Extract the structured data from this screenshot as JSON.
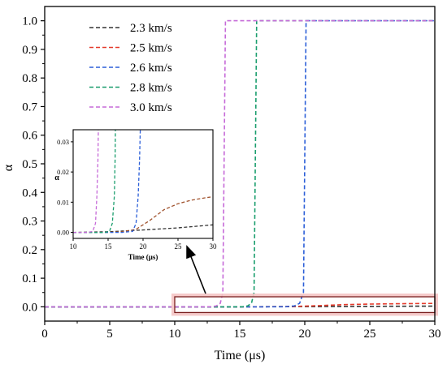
{
  "chart_data": [
    {
      "type": "line",
      "title": "",
      "xlabel": "Time (μs)",
      "ylabel": "α",
      "xlim": [
        0,
        30
      ],
      "ylim": [
        -0.05,
        1.05
      ],
      "x_ticks": [
        0,
        5,
        10,
        15,
        20,
        25,
        30
      ],
      "y_ticks": [
        0.0,
        0.1,
        0.2,
        0.3,
        0.4,
        0.5,
        0.6,
        0.7,
        0.8,
        0.9,
        1.0
      ],
      "x_tick_labels": [
        "0",
        "5",
        "10",
        "15",
        "20",
        "25",
        "30"
      ],
      "y_tick_labels": [
        "0.0",
        "0.1",
        "0.2",
        "0.3",
        "0.4",
        "0.5",
        "0.6",
        "0.7",
        "0.8",
        "0.9",
        "1.0"
      ],
      "grid": false,
      "legend_position": "top-left",
      "line_style": "dashed",
      "series": [
        {
          "name": "2.3 km/s",
          "color": "#333333",
          "x": [
            0,
            10,
            15,
            20,
            25,
            30
          ],
          "y": [
            0,
            0,
            0.0002,
            0.0008,
            0.0015,
            0.0025
          ]
        },
        {
          "name": "2.5 km/s",
          "color": "#e53b2c",
          "x": [
            0,
            10,
            15,
            17,
            19,
            21,
            23,
            25,
            27,
            29,
            30
          ],
          "y": [
            0,
            0,
            0,
            0.0002,
            0.001,
            0.004,
            0.0075,
            0.0095,
            0.0107,
            0.0115,
            0.0118
          ]
        },
        {
          "name": "2.6 km/s",
          "color": "#2c5fd8",
          "x": [
            0,
            10,
            17,
            18.5,
            19.2,
            19.6,
            19.9,
            20.1,
            25,
            30
          ],
          "y": [
            0,
            0,
            0,
            0.0003,
            0.003,
            0.012,
            0.05,
            1.0,
            1.0,
            1.0
          ]
        },
        {
          "name": "2.8 km/s",
          "color": "#1b9e6e",
          "x": [
            0,
            10,
            14.5,
            15.2,
            15.6,
            15.9,
            16.1,
            16.3,
            25,
            30
          ],
          "y": [
            0,
            0,
            0,
            0.0003,
            0.003,
            0.012,
            0.05,
            1.0,
            1.0,
            1.0
          ]
        },
        {
          "name": "3.0 km/s",
          "color": "#c66ad8",
          "x": [
            0,
            10,
            12.0,
            12.8,
            13.2,
            13.5,
            13.7,
            13.9,
            25,
            30
          ],
          "y": [
            0,
            0,
            0,
            0.0003,
            0.003,
            0.012,
            0.05,
            1.0,
            1.0,
            1.0
          ]
        }
      ],
      "highlight_box": {
        "x_range": [
          10,
          30
        ],
        "y_range": [
          -0.02,
          0.035
        ]
      }
    },
    {
      "type": "line",
      "title": "",
      "xlabel": "Time (μs)",
      "ylabel": "α",
      "xlim": [
        10,
        30
      ],
      "ylim": [
        -0.002,
        0.034
      ],
      "x_ticks": [
        10,
        15,
        20,
        25,
        30
      ],
      "y_ticks": [
        0.0,
        0.01,
        0.02,
        0.03
      ],
      "x_tick_labels": [
        "10",
        "15",
        "20",
        "25",
        "30"
      ],
      "y_tick_labels": [
        "0.00",
        "0.01",
        "0.02",
        "0.03"
      ],
      "grid": false,
      "line_style": "dashed",
      "series": [
        {
          "name": "2.3 km/s",
          "color": "#333333",
          "x": [
            10,
            15,
            20,
            25,
            30
          ],
          "y": [
            0,
            0.0002,
            0.0008,
            0.0015,
            0.0025
          ]
        },
        {
          "name": "2.5 km/s",
          "color": "#a0522d",
          "x": [
            10,
            15,
            17,
            19,
            21,
            23,
            25,
            27,
            29,
            30
          ],
          "y": [
            0,
            0,
            0.0002,
            0.001,
            0.004,
            0.0075,
            0.0095,
            0.0107,
            0.0115,
            0.0118
          ]
        },
        {
          "name": "2.6 km/s",
          "color": "#2c5fd8",
          "x": [
            10,
            17,
            18.5,
            19.0,
            19.3,
            19.5,
            19.6
          ],
          "y": [
            0,
            0,
            0.0003,
            0.003,
            0.012,
            0.024,
            0.034
          ]
        },
        {
          "name": "2.8 km/s",
          "color": "#1b9e6e",
          "x": [
            10,
            14.5,
            15.2,
            15.6,
            15.9,
            16.0,
            16.05
          ],
          "y": [
            0,
            0,
            0.0003,
            0.003,
            0.012,
            0.024,
            0.034
          ]
        },
        {
          "name": "3.0 km/s",
          "color": "#c66ad8",
          "x": [
            10,
            12.0,
            12.8,
            13.2,
            13.4,
            13.55,
            13.6
          ],
          "y": [
            0,
            0,
            0.0003,
            0.003,
            0.012,
            0.024,
            0.034
          ]
        }
      ]
    }
  ]
}
